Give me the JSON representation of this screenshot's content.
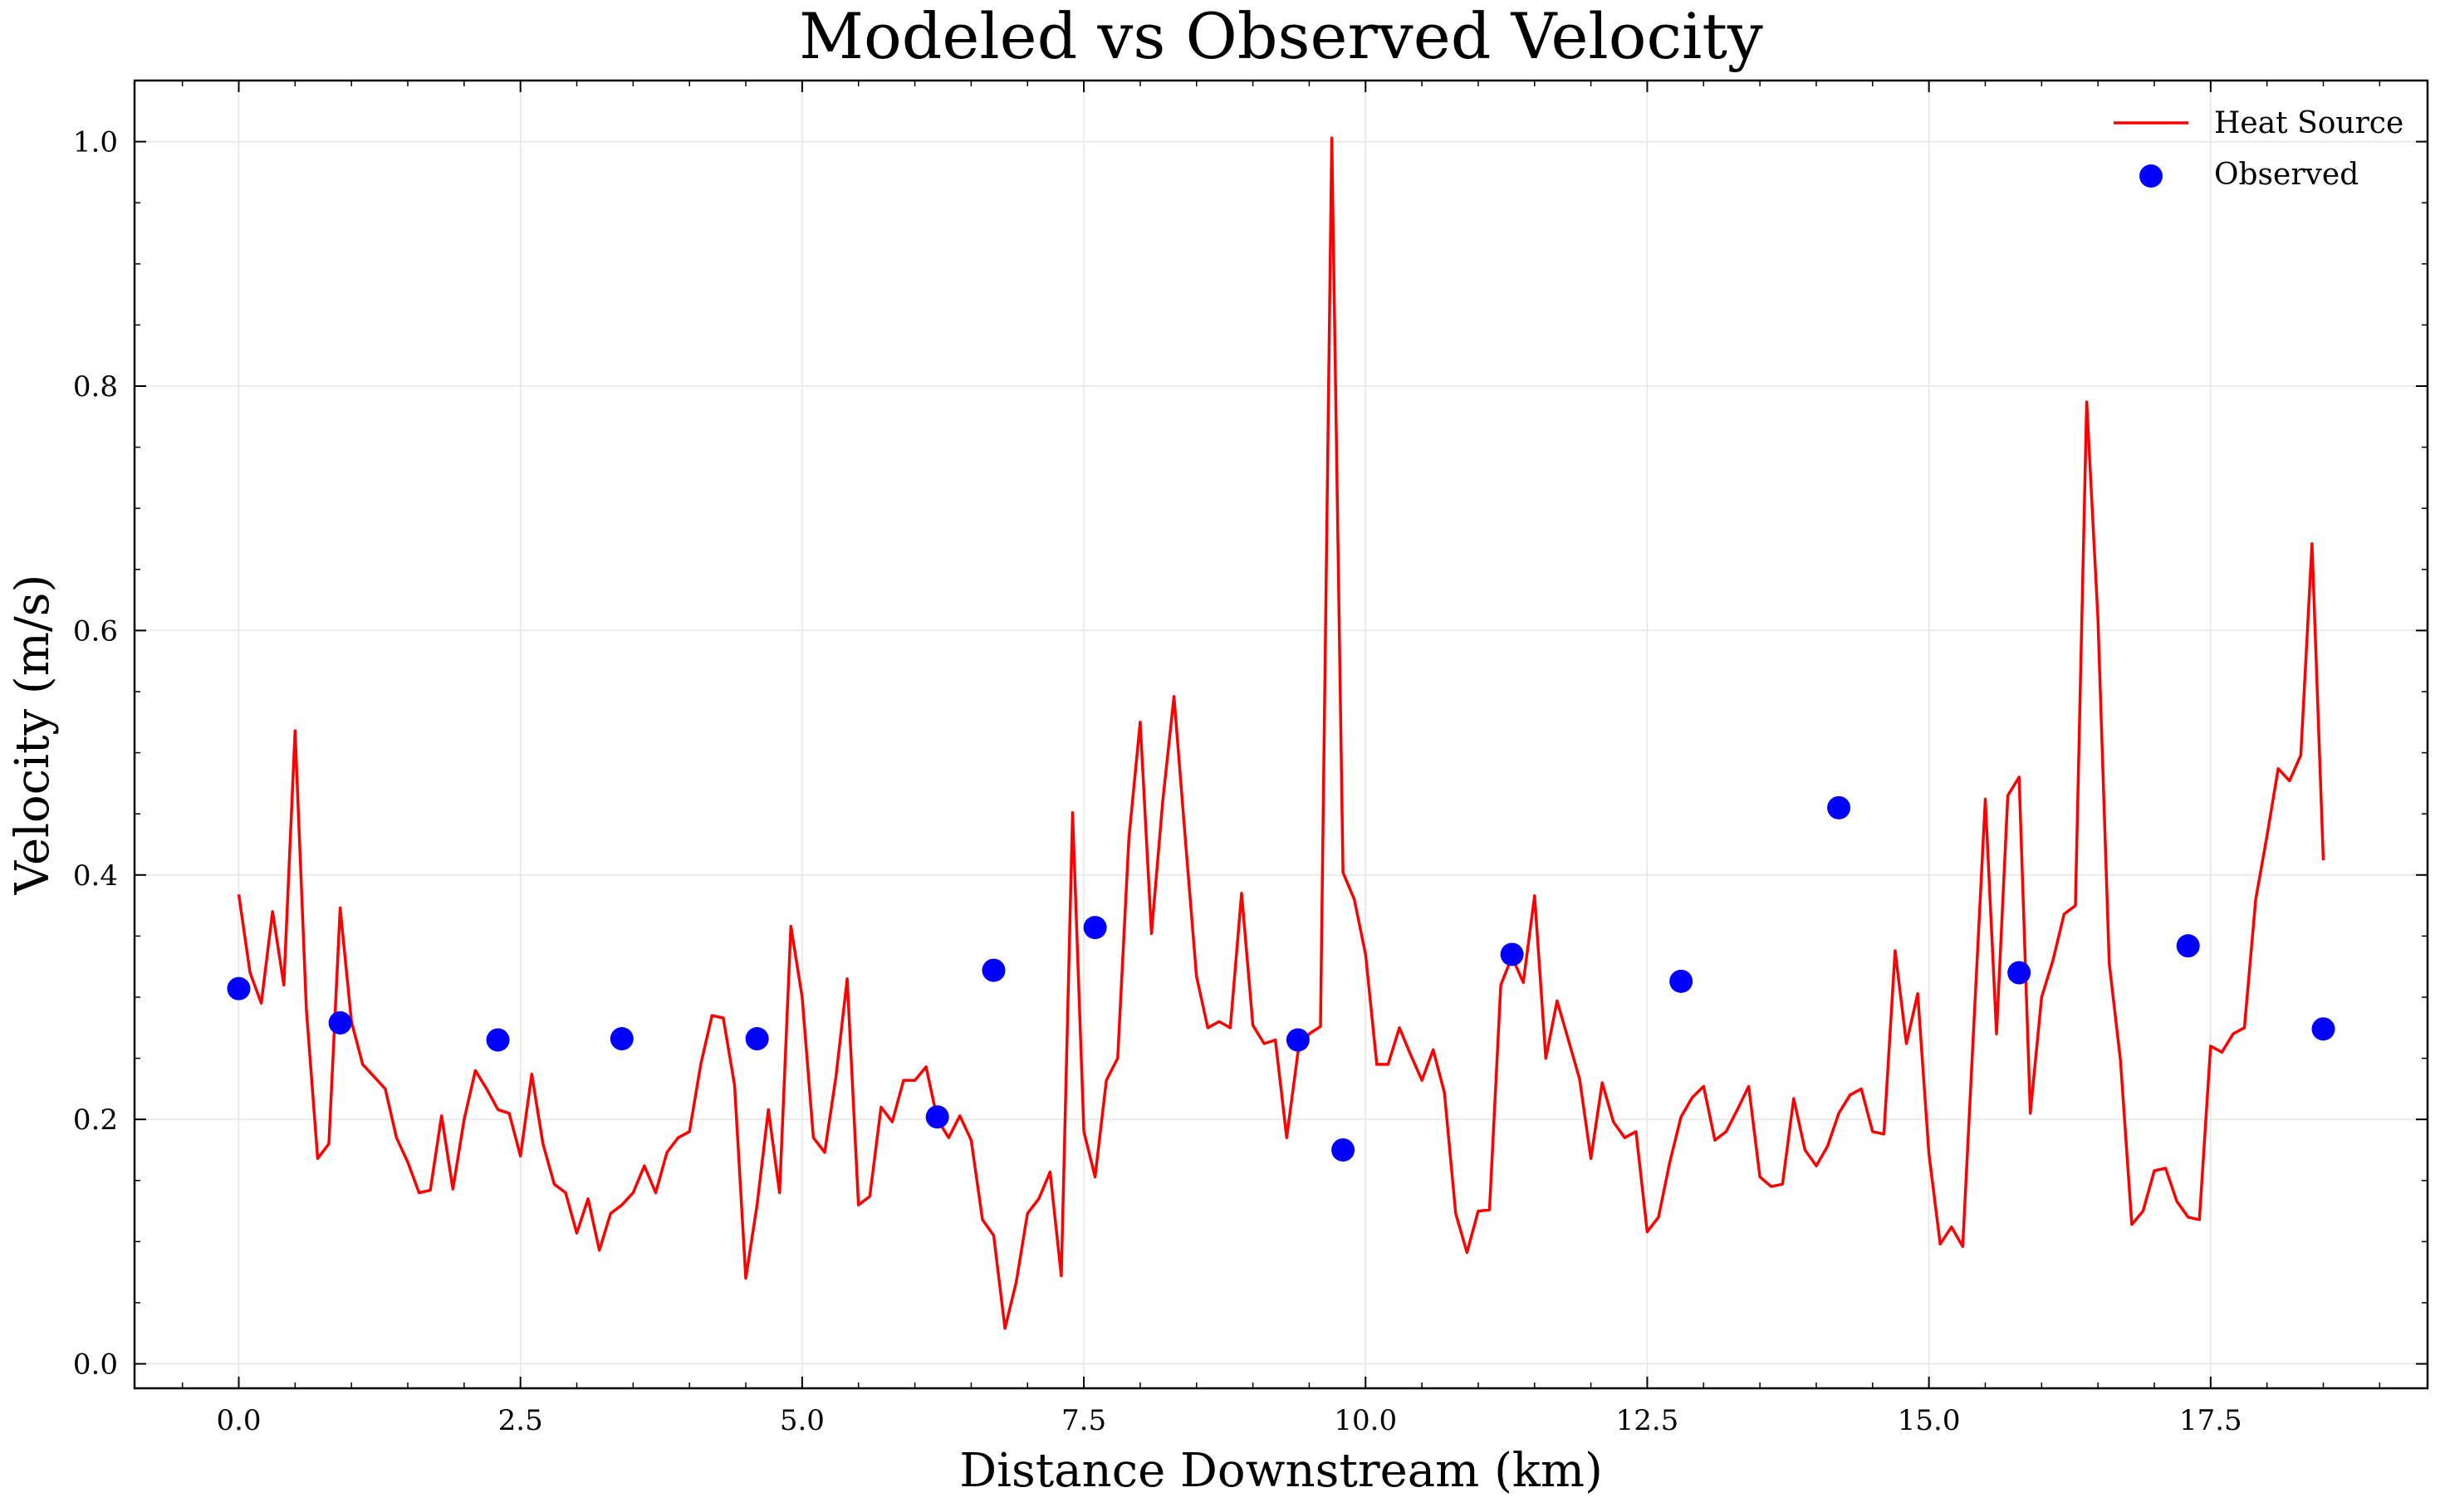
{
  "chart_data": {
    "type": "line",
    "title": "Modeled vs Observed Velocity",
    "xlabel": "Distance Downstream (km)",
    "ylabel": "Velocity (m/s)",
    "xlim": [
      -0.925,
      19.425
    ],
    "ylim": [
      -0.02,
      1.05
    ],
    "x_ticks": [
      0.0,
      2.5,
      5.0,
      7.5,
      10.0,
      12.5,
      15.0,
      17.5
    ],
    "x_tick_labels": [
      "0.0",
      "2.5",
      "5.0",
      "7.5",
      "10.0",
      "12.5",
      "15.0",
      "17.5"
    ],
    "y_ticks": [
      0.0,
      0.2,
      0.4,
      0.6,
      0.8,
      1.0
    ],
    "y_tick_labels": [
      "0.0",
      "0.2",
      "0.4",
      "0.6",
      "0.8",
      "1.0"
    ],
    "grid": true,
    "legend_position": "top-right",
    "series": [
      {
        "name": "Heat Source",
        "kind": "line",
        "color": "#ff0000",
        "x": [
          0.0,
          0.1,
          0.2,
          0.3,
          0.4,
          0.5,
          0.6,
          0.7,
          0.8,
          0.9,
          1.0,
          1.1,
          1.2,
          1.3,
          1.4,
          1.5,
          1.6,
          1.7,
          1.8,
          1.9,
          2.0,
          2.1,
          2.2,
          2.3,
          2.4,
          2.5,
          2.6,
          2.7,
          2.8,
          2.9,
          3.0,
          3.1,
          3.2,
          3.3,
          3.4,
          3.5,
          3.6,
          3.7,
          3.8,
          3.9,
          4.0,
          4.1,
          4.2,
          4.3,
          4.4,
          4.5,
          4.6,
          4.7,
          4.8,
          4.9,
          5.0,
          5.1,
          5.2,
          5.3,
          5.4,
          5.5,
          5.6,
          5.7,
          5.8,
          5.9,
          6.0,
          6.1,
          6.2,
          6.3,
          6.4,
          6.5,
          6.6,
          6.7,
          6.8,
          6.9,
          7.0,
          7.1,
          7.2,
          7.3,
          7.4,
          7.5,
          7.6,
          7.7,
          7.8,
          7.9,
          8.0,
          8.1,
          8.2,
          8.3,
          8.4,
          8.5,
          8.6,
          8.7,
          8.8,
          8.9,
          9.0,
          9.1,
          9.2,
          9.3,
          9.4,
          9.5,
          9.6,
          9.7,
          9.8,
          9.9,
          10.0,
          10.1,
          10.2,
          10.3,
          10.4,
          10.5,
          10.6,
          10.7,
          10.8,
          10.9,
          11.0,
          11.1,
          11.2,
          11.3,
          11.4,
          11.5,
          11.6,
          11.7,
          11.8,
          11.9,
          12.0,
          12.1,
          12.2,
          12.3,
          12.4,
          12.5,
          12.6,
          12.7,
          12.8,
          12.9,
          13.0,
          13.1,
          13.2,
          13.3,
          13.4,
          13.5,
          13.6,
          13.7,
          13.8,
          13.9,
          14.0,
          14.1,
          14.2,
          14.3,
          14.4,
          14.5,
          14.6,
          14.7,
          14.8,
          14.9,
          15.0,
          15.1,
          15.2,
          15.3,
          15.4,
          15.5,
          15.6,
          15.7,
          15.8,
          15.9,
          16.0,
          16.1,
          16.2,
          16.3,
          16.4,
          16.5,
          16.6,
          16.7,
          16.8,
          16.9,
          17.0,
          17.1,
          17.2,
          17.3,
          17.4,
          17.5,
          17.6,
          17.7,
          17.8,
          17.9,
          18.0,
          18.1,
          18.2,
          18.3,
          18.4,
          18.5
        ],
        "y": [
          0.384,
          0.32,
          0.295,
          0.37,
          0.31,
          0.518,
          0.29,
          0.168,
          0.18,
          0.373,
          0.28,
          0.245,
          0.235,
          0.225,
          0.185,
          0.165,
          0.14,
          0.142,
          0.203,
          0.143,
          0.2,
          0.24,
          0.225,
          0.208,
          0.205,
          0.17,
          0.237,
          0.18,
          0.147,
          0.14,
          0.107,
          0.135,
          0.093,
          0.123,
          0.13,
          0.14,
          0.162,
          0.14,
          0.173,
          0.185,
          0.19,
          0.245,
          0.285,
          0.283,
          0.228,
          0.07,
          0.13,
          0.208,
          0.14,
          0.358,
          0.3,
          0.185,
          0.173,
          0.235,
          0.315,
          0.13,
          0.137,
          0.21,
          0.198,
          0.232,
          0.232,
          0.243,
          0.2,
          0.185,
          0.203,
          0.183,
          0.118,
          0.105,
          0.029,
          0.067,
          0.123,
          0.135,
          0.157,
          0.072,
          0.451,
          0.19,
          0.153,
          0.232,
          0.25,
          0.43,
          0.525,
          0.352,
          0.46,
          0.546,
          0.43,
          0.317,
          0.275,
          0.28,
          0.275,
          0.385,
          0.277,
          0.262,
          0.265,
          0.185,
          0.255,
          0.27,
          0.276,
          1.003,
          0.402,
          0.38,
          0.335,
          0.245,
          0.245,
          0.275,
          0.253,
          0.232,
          0.257,
          0.222,
          0.123,
          0.091,
          0.125,
          0.126,
          0.31,
          0.333,
          0.312,
          0.383,
          0.25,
          0.297,
          0.265,
          0.233,
          0.168,
          0.23,
          0.198,
          0.185,
          0.19,
          0.108,
          0.12,
          0.165,
          0.202,
          0.218,
          0.227,
          0.183,
          0.19,
          0.208,
          0.227,
          0.153,
          0.145,
          0.147,
          0.217,
          0.175,
          0.162,
          0.178,
          0.205,
          0.22,
          0.225,
          0.19,
          0.188,
          0.338,
          0.262,
          0.303,
          0.172,
          0.098,
          0.112,
          0.096,
          0.28,
          0.462,
          0.27,
          0.465,
          0.48,
          0.205,
          0.3,
          0.33,
          0.368,
          0.375,
          0.787,
          0.61,
          0.328,
          0.248,
          0.114,
          0.125,
          0.158,
          0.16,
          0.133,
          0.12,
          0.118,
          0.26,
          0.255,
          0.27,
          0.275,
          0.38,
          0.432,
          0.487,
          0.477,
          0.498,
          0.671,
          0.412
        ]
      },
      {
        "name": "Observed",
        "kind": "scatter",
        "color": "#0000ff",
        "x": [
          0.0,
          0.9,
          2.3,
          3.4,
          4.6,
          6.2,
          6.7,
          7.6,
          9.4,
          9.8,
          11.3,
          12.8,
          14.2,
          15.8,
          17.3,
          18.5
        ],
        "y": [
          0.307,
          0.279,
          0.265,
          0.266,
          0.266,
          0.202,
          0.322,
          0.357,
          0.265,
          0.175,
          0.335,
          0.313,
          0.455,
          0.32,
          0.342,
          0.274
        ]
      }
    ]
  }
}
